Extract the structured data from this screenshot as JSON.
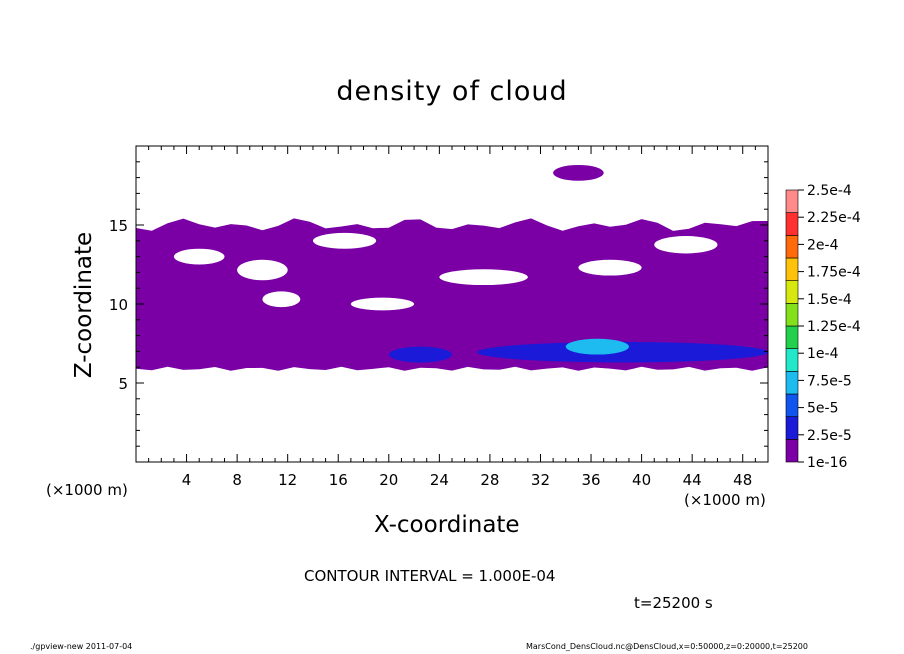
{
  "chart_data": {
    "type": "heatmap",
    "title": "density of cloud",
    "xlabel": "X-coordinate",
    "ylabel": "Z-coordinate",
    "x_unit": "(×1000 m)",
    "xlim": [
      0,
      50
    ],
    "ylim": [
      0,
      20
    ],
    "x_ticks": [
      "4",
      "8",
      "12",
      "16",
      "20",
      "24",
      "28",
      "32",
      "36",
      "40",
      "44",
      "48"
    ],
    "y_ticks": [
      "5",
      "10",
      "15"
    ],
    "colorbar": {
      "levels": [
        "1e-16",
        "2.5e-5",
        "5e-5",
        "7.5e-5",
        "1e-4",
        "1.25e-4",
        "1.5e-4",
        "1.75e-4",
        "2e-4",
        "2.25e-4",
        "2.5e-4"
      ],
      "colors": [
        "#7a00a6",
        "#1a1ad8",
        "#0f55ee",
        "#1dbbf0",
        "#22e8c9",
        "#22d04c",
        "#84e01a",
        "#d6e810",
        "#ffc20a",
        "#ff6a0a",
        "#ff3030",
        "#ff8a8a"
      ]
    },
    "regions": [
      {
        "name": "main-cloud-band",
        "level": 0,
        "x": [
          0,
          50
        ],
        "z": [
          5.9,
          15
        ]
      },
      {
        "name": "upper-patch",
        "level": 0,
        "x": [
          33,
          37
        ],
        "z": [
          17.8,
          18.8
        ]
      },
      {
        "name": "core-left",
        "level": 1,
        "x": [
          20,
          25
        ],
        "z": [
          6.3,
          7.3
        ]
      },
      {
        "name": "core-right",
        "level": 1,
        "x": [
          27,
          50
        ],
        "z": [
          6.3,
          7.6
        ]
      },
      {
        "name": "core-max",
        "level": 3,
        "x": [
          34,
          39
        ],
        "z": [
          6.8,
          7.8
        ]
      }
    ]
  },
  "contour_interval": "CONTOUR INTERVAL = 1.000E-04",
  "time_label": "t=25200 s",
  "footer_left": "./gpview-new   2011-07-04",
  "footer_right": "MarsCond_DensCloud.nc@DensCloud,x=0:50000,z=0:20000,t=25200"
}
